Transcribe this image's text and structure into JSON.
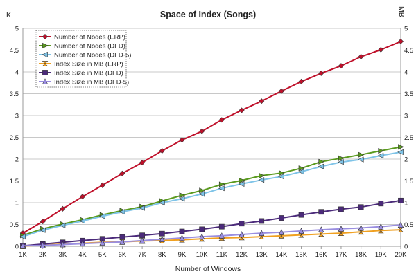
{
  "chart_data": {
    "type": "line",
    "title": "Space of Index (Songs)",
    "xlabel": "Number of Windows",
    "ylabel_left": "K",
    "ylabel_right": "MB",
    "categories": [
      "1K",
      "2K",
      "3K",
      "4K",
      "5K",
      "6K",
      "7K",
      "8K",
      "9K",
      "10K",
      "11K",
      "12K",
      "13K",
      "14K",
      "15K",
      "16K",
      "17K",
      "18K",
      "19K",
      "20K"
    ],
    "ylim": [
      0,
      5
    ],
    "yticks": [
      "0",
      "0.5",
      "1",
      "1.5",
      "2",
      "2.5",
      "3",
      "3.5",
      "4",
      "4.5",
      "5"
    ],
    "grid": true,
    "legend_position": "top-left",
    "series": [
      {
        "name": "Number of Nodes (ERP)",
        "marker": "diamond",
        "color": "#c0102a",
        "values": [
          0.3,
          0.57,
          0.86,
          1.14,
          1.4,
          1.67,
          1.92,
          2.19,
          2.44,
          2.64,
          2.9,
          3.12,
          3.33,
          3.56,
          3.78,
          3.97,
          4.14,
          4.35,
          4.51,
          4.7
        ]
      },
      {
        "name": "Number of Nodes (DFD)",
        "marker": "triangle-right",
        "color": "#5a9a1e",
        "values": [
          0.25,
          0.4,
          0.51,
          0.61,
          0.72,
          0.82,
          0.91,
          1.04,
          1.17,
          1.28,
          1.42,
          1.51,
          1.62,
          1.68,
          1.79,
          1.94,
          2.02,
          2.1,
          2.19,
          2.28
        ]
      },
      {
        "name": "Number of Nodes (DFD-5)",
        "marker": "triangle-left",
        "color": "#7fc4e8",
        "values": [
          0.22,
          0.37,
          0.48,
          0.58,
          0.69,
          0.79,
          0.88,
          1.0,
          1.09,
          1.2,
          1.33,
          1.43,
          1.52,
          1.6,
          1.71,
          1.83,
          1.93,
          1.99,
          2.08,
          2.16
        ]
      },
      {
        "name": "Index Size in MB (ERP)",
        "marker": "hourglass",
        "color": "#f0a020",
        "values": [
          0.0,
          0.03,
          0.05,
          0.07,
          0.09,
          0.1,
          0.12,
          0.13,
          0.15,
          0.17,
          0.19,
          0.2,
          0.22,
          0.24,
          0.26,
          0.28,
          0.3,
          0.33,
          0.36,
          0.38
        ]
      },
      {
        "name": "Index Size in MB  (DFD)",
        "marker": "square",
        "color": "#4b2a7a",
        "values": [
          0.01,
          0.05,
          0.09,
          0.13,
          0.17,
          0.21,
          0.25,
          0.29,
          0.34,
          0.39,
          0.45,
          0.52,
          0.58,
          0.65,
          0.72,
          0.79,
          0.85,
          0.9,
          0.98,
          1.05
        ]
      },
      {
        "name": "Index Size in MB  (DFD-5)",
        "marker": "triangle-up",
        "color": "#9a8ee0",
        "values": [
          0.01,
          0.02,
          0.04,
          0.06,
          0.08,
          0.1,
          0.13,
          0.16,
          0.19,
          0.22,
          0.24,
          0.27,
          0.3,
          0.32,
          0.35,
          0.38,
          0.4,
          0.42,
          0.45,
          0.49
        ]
      }
    ]
  }
}
